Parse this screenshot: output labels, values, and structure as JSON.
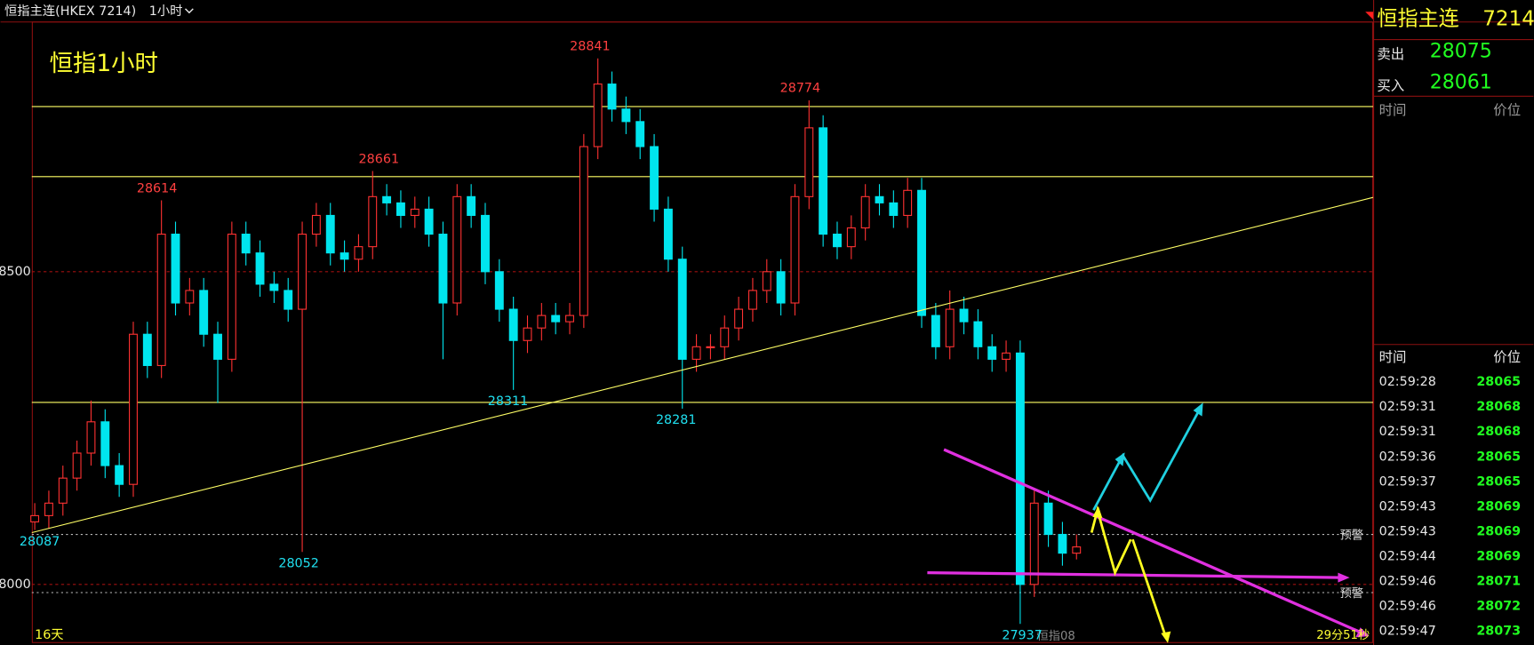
{
  "header": {
    "title": "恒指主连(HKEX 7214)",
    "period": "1小时"
  },
  "chart_data": {
    "type": "candlestick",
    "title": "恒指1小时",
    "open": [
      28100,
      28110,
      28130,
      28170,
      28210,
      28260,
      28190,
      28160,
      28400,
      28350,
      28560,
      28450,
      28470,
      28400,
      28360,
      28560,
      28530,
      28480,
      28470,
      28440,
      28560,
      28590,
      28530,
      28520,
      28540,
      28620,
      28610,
      28590,
      28600,
      28560,
      28450,
      28620,
      28590,
      28500,
      28440,
      28390,
      28410,
      28430,
      28420,
      28430,
      28700,
      28800,
      28760,
      28740,
      28700,
      28600,
      28520,
      28360,
      28380,
      28380,
      28410,
      28440,
      28470,
      28500,
      28450,
      28620,
      28730,
      28560,
      28540,
      28570,
      28620,
      28610,
      28590,
      28630,
      28430,
      28380,
      28440,
      28420,
      28380,
      28360,
      28370,
      28000,
      28130,
      28080,
      28050
    ],
    "high": [
      28130,
      28150,
      28190,
      28230,
      28294,
      28280,
      28210,
      28420,
      28420,
      28614,
      28580,
      28490,
      28490,
      28420,
      28580,
      28580,
      28550,
      28500,
      28490,
      28580,
      28610,
      28610,
      28550,
      28560,
      28661,
      28640,
      28630,
      28620,
      28620,
      28580,
      28640,
      28640,
      28610,
      28520,
      28460,
      28430,
      28450,
      28450,
      28450,
      28720,
      28841,
      28820,
      28780,
      28760,
      28720,
      28620,
      28540,
      28400,
      28400,
      28430,
      28460,
      28490,
      28520,
      28520,
      28640,
      28774,
      28750,
      28580,
      28590,
      28640,
      28640,
      28630,
      28650,
      28650,
      28450,
      28470,
      28460,
      28440,
      28400,
      28390,
      28390,
      28150,
      28150,
      28100,
      28080
    ],
    "low": [
      28087,
      28090,
      28110,
      28150,
      28190,
      28170,
      28140,
      28140,
      28330,
      28330,
      28430,
      28430,
      28380,
      28290,
      28340,
      28510,
      28460,
      28450,
      28420,
      28052,
      28540,
      28510,
      28500,
      28500,
      28520,
      28590,
      28570,
      28570,
      28540,
      28360,
      28430,
      28570,
      28480,
      28420,
      28311,
      28370,
      28390,
      28400,
      28400,
      28410,
      28680,
      28740,
      28720,
      28680,
      28580,
      28500,
      28281,
      28340,
      28360,
      28360,
      28390,
      28420,
      28450,
      28430,
      28430,
      28600,
      28540,
      28520,
      28520,
      28550,
      28590,
      28570,
      28570,
      28410,
      28360,
      28360,
      28400,
      28360,
      28340,
      28340,
      27937,
      27980,
      28060,
      28030,
      28040
    ],
    "close": [
      28110,
      28130,
      28170,
      28210,
      28260,
      28190,
      28160,
      28400,
      28350,
      28560,
      28450,
      28470,
      28400,
      28360,
      28560,
      28530,
      28480,
      28470,
      28440,
      28560,
      28590,
      28530,
      28520,
      28540,
      28620,
      28610,
      28590,
      28600,
      28560,
      28450,
      28620,
      28590,
      28500,
      28440,
      28390,
      28410,
      28430,
      28420,
      28430,
      28700,
      28800,
      28760,
      28740,
      28700,
      28600,
      28520,
      28360,
      28380,
      28380,
      28410,
      28440,
      28470,
      28500,
      28450,
      28620,
      28730,
      28560,
      28540,
      28570,
      28620,
      28610,
      28590,
      28630,
      28430,
      28380,
      28440,
      28420,
      28380,
      28360,
      28370,
      28000,
      28130,
      28080,
      28050,
      28060
    ],
    "up_color": "#ff3232",
    "down_color": "#00e5ee",
    "ylim": [
      27911,
      28900
    ],
    "yticks": [
      28000,
      28500
    ],
    "grid": true,
    "grid_color": "#a01010",
    "hlines": [
      28764,
      28652,
      28291
    ],
    "hline_color": "#ffff66",
    "alerts": [
      {
        "label": "预警",
        "value": 28080
      },
      {
        "label": "预警",
        "value": 27987
      }
    ],
    "peak_labels": [
      28614,
      28661,
      28841,
      28774
    ],
    "low_labels": [
      28087,
      28052,
      28311,
      28281,
      27937
    ],
    "footer_left": "16天",
    "footer_mid": "恒指08",
    "footer_right": "29分51秒"
  },
  "quote": {
    "name": "恒指主连",
    "code": "7214",
    "sell_label": "卖出",
    "sell": 28075,
    "buy_label": "买入",
    "buy": 28061
  },
  "trades_panel": {
    "headers": [
      "时间",
      "价位"
    ]
  },
  "ticks_panel": {
    "headers": [
      "时间",
      "价位"
    ],
    "rows": [
      [
        "02:59:28",
        28065
      ],
      [
        "02:59:31",
        28068
      ],
      [
        "02:59:31",
        28068
      ],
      [
        "02:59:36",
        28065
      ],
      [
        "02:59:37",
        28065
      ],
      [
        "02:59:43",
        28069
      ],
      [
        "02:59:43",
        28069
      ],
      [
        "02:59:44",
        28069
      ],
      [
        "02:59:46",
        28071
      ],
      [
        "02:59:46",
        28072
      ],
      [
        "02:59:47",
        28073
      ]
    ]
  }
}
